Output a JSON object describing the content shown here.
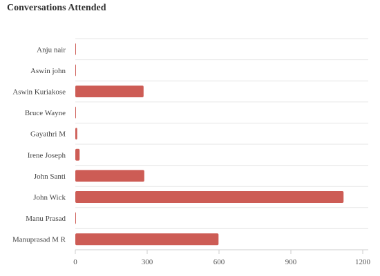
{
  "chart_data": {
    "type": "bar",
    "orientation": "horizontal",
    "title": "Conversations Attended",
    "categories": [
      "Anju nair",
      "Aswin john",
      "Aswin Kuriakose",
      "Bruce Wayne",
      "Gayathri M",
      "Irene Joseph",
      "John Santi",
      "John Wick",
      "Manu Prasad",
      "Manuprasad M R"
    ],
    "values": [
      2,
      2,
      285,
      2,
      8,
      18,
      288,
      1120,
      2,
      598
    ],
    "xlim": [
      0,
      1200
    ],
    "xticks": [
      "0",
      "300",
      "600",
      "900",
      "1200"
    ],
    "grid": "horizontal",
    "legend": "none",
    "bar_color": "#cd5c55"
  }
}
